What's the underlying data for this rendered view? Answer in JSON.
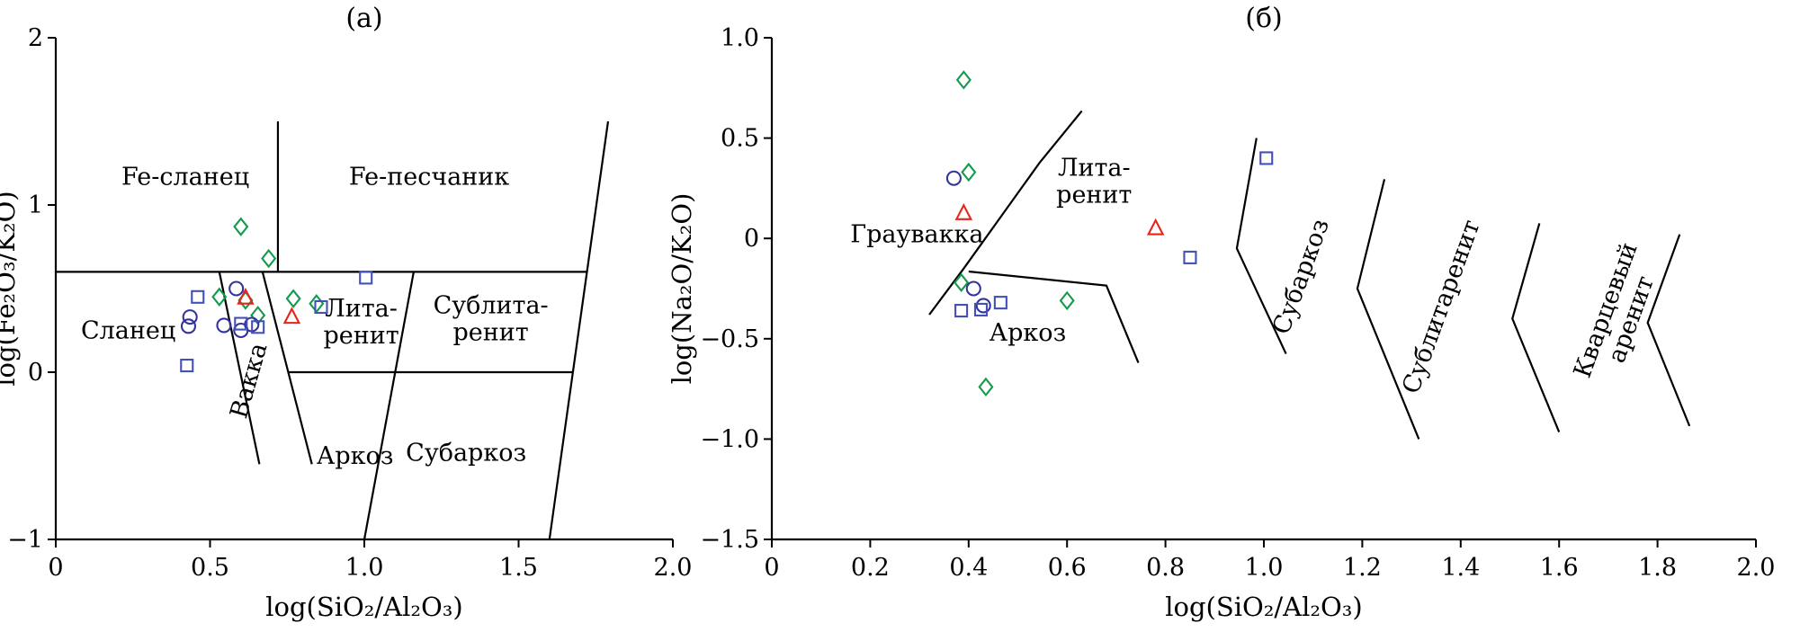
{
  "figure": {
    "background": "#ffffff",
    "line_color": "#000000"
  },
  "chart_data": [
    {
      "type": "scatter",
      "id": "a",
      "title": "(а)",
      "xlabel": "log(SiO₂/Al₂O₃)",
      "ylabel": "log(Fe₂O₃/K₂O)",
      "xlim": [
        0,
        2
      ],
      "ylim": [
        -1,
        2
      ],
      "grid": false,
      "legend": "none",
      "xtick_values": [
        0,
        0.5,
        1.0,
        1.5,
        2.0
      ],
      "xtick_labels": [
        "0",
        "0.5",
        "1.0",
        "1.5",
        "2.0"
      ],
      "ytick_values": [
        -1,
        0,
        1,
        2
      ],
      "ytick_labels": [
        "−1",
        "0",
        "1",
        "2"
      ],
      "boundary_lines": [
        {
          "name": "fe-field-horizontal",
          "points": [
            [
              0,
              0.6
            ],
            [
              1.72,
              0.6
            ]
          ]
        },
        {
          "name": "fe-shale-sandstone-vertical",
          "points": [
            [
              0.72,
              1.5
            ],
            [
              0.72,
              0.6
            ]
          ]
        },
        {
          "name": "shale-wacke",
          "points": [
            [
              0.53,
              0.6
            ],
            [
              0.66,
              -0.55
            ]
          ]
        },
        {
          "name": "wacke-litharenite-arkose",
          "points": [
            [
              0.67,
              0.6
            ],
            [
              0.83,
              -0.55
            ]
          ]
        },
        {
          "name": "litharenite-arkose-horizontal",
          "points": [
            [
              0.753,
              0
            ],
            [
              1.676,
              0
            ]
          ]
        },
        {
          "name": "litharenite-sublitharenite",
          "points": [
            [
              1.16,
              0.6
            ],
            [
              1.0,
              -1.0
            ]
          ]
        },
        {
          "name": "right-field-boundary",
          "points": [
            [
              1.79,
              1.5
            ],
            [
              1.6,
              -1.0
            ]
          ]
        }
      ],
      "region_labels": [
        {
          "lines": [
            "Fe-сланец"
          ],
          "x": 0.42,
          "y": 1.17,
          "rotation": 0
        },
        {
          "lines": [
            "Fe-песчаник"
          ],
          "x": 1.21,
          "y": 1.17,
          "rotation": 0
        },
        {
          "lines": [
            "Сланец"
          ],
          "x": 0.235,
          "y": 0.25,
          "rotation": 0
        },
        {
          "lines": [
            "Вакка"
          ],
          "x": 0.625,
          "y": -0.05,
          "rotation": -74
        },
        {
          "lines": [
            "Лита-",
            "ренит"
          ],
          "x": 0.99,
          "y": 0.3,
          "rotation": 0
        },
        {
          "lines": [
            "Сублита-",
            "ренит"
          ],
          "x": 1.41,
          "y": 0.32,
          "rotation": 0
        },
        {
          "lines": [
            "Аркоз"
          ],
          "x": 0.97,
          "y": -0.5,
          "rotation": 0
        },
        {
          "lines": [
            "Субаркоз"
          ],
          "x": 1.33,
          "y": -0.48,
          "rotation": 0
        }
      ],
      "series": [
        {
          "name": "green-diamond-samples",
          "marker": "diamond",
          "color": "#119b4b",
          "points": [
            [
              0.6,
              0.87
            ],
            [
              0.69,
              0.68
            ],
            [
              0.53,
              0.45
            ],
            [
              0.615,
              0.43
            ],
            [
              0.77,
              0.44
            ],
            [
              0.845,
              0.41
            ],
            [
              0.655,
              0.34
            ]
          ]
        },
        {
          "name": "blue-circle-samples",
          "marker": "circle",
          "color": "#33339c",
          "points": [
            [
              0.585,
              0.5
            ],
            [
              0.435,
              0.33
            ],
            [
              0.43,
              0.275
            ],
            [
              0.545,
              0.28
            ],
            [
              0.6,
              0.25
            ],
            [
              0.635,
              0.285
            ]
          ]
        },
        {
          "name": "blue-square-samples",
          "marker": "square",
          "color": "#4350b5",
          "points": [
            [
              0.46,
              0.45
            ],
            [
              0.6,
              0.29
            ],
            [
              0.655,
              0.27
            ],
            [
              0.86,
              0.39
            ],
            [
              1.005,
              0.565
            ],
            [
              0.425,
              0.04
            ]
          ]
        },
        {
          "name": "red-triangle-samples",
          "marker": "triangle",
          "color": "#e8231a",
          "points": [
            [
              0.615,
              0.445
            ],
            [
              0.765,
              0.33
            ]
          ]
        }
      ]
    },
    {
      "type": "scatter",
      "id": "b",
      "title": "(б)",
      "xlabel": "log(SiO₂/Al₂O₃)",
      "ylabel": "log(Na₂O/K₂O)",
      "xlim": [
        0,
        2
      ],
      "ylim": [
        -1.5,
        1.0
      ],
      "grid": false,
      "legend": "none",
      "xtick_values": [
        0,
        0.2,
        0.4,
        0.6,
        0.8,
        1.0,
        1.2,
        1.4,
        1.6,
        1.8,
        2.0
      ],
      "xtick_labels": [
        "0",
        "0.2",
        "0.4",
        "0.6",
        "0.8",
        "1.0",
        "1.2",
        "1.4",
        "1.6",
        "1.8",
        "2.0"
      ],
      "ytick_values": [
        -1.5,
        -1.0,
        -0.5,
        0,
        0.5,
        1.0
      ],
      "ytick_labels": [
        "−1.5",
        "−1.0",
        "−0.5",
        "0",
        "0.5",
        "1.0"
      ],
      "boundary_lines": [
        {
          "name": "graywacke-litharenite",
          "points": [
            [
              0.63,
              0.635
            ],
            [
              0.545,
              0.38
            ],
            [
              0.39,
              -0.15
            ],
            [
              0.32,
              -0.38
            ]
          ]
        },
        {
          "name": "arkose-upper",
          "points": [
            [
              0.4,
              -0.165
            ],
            [
              0.68,
              -0.235
            ],
            [
              0.745,
              -0.62
            ]
          ]
        },
        {
          "name": "litharenite-subarkose",
          "points": [
            [
              0.985,
              0.5
            ],
            [
              0.945,
              -0.05
            ],
            [
              1.045,
              -0.575
            ]
          ]
        },
        {
          "name": "subarkose-sublitharenite",
          "points": [
            [
              1.245,
              0.295
            ],
            [
              1.19,
              -0.25
            ],
            [
              1.315,
              -1.0
            ]
          ]
        },
        {
          "name": "sublitharenite-quartzarenite",
          "points": [
            [
              1.56,
              0.075
            ],
            [
              1.505,
              -0.4
            ],
            [
              1.6,
              -0.965
            ]
          ]
        },
        {
          "name": "quartzarenite-right",
          "points": [
            [
              1.845,
              0.02
            ],
            [
              1.78,
              -0.42
            ],
            [
              1.865,
              -0.935
            ]
          ]
        }
      ],
      "region_labels": [
        {
          "lines": [
            "Граувакка"
          ],
          "x": 0.295,
          "y": 0.02,
          "rotation": 0
        },
        {
          "lines": [
            "Лита-",
            "ренит"
          ],
          "x": 0.655,
          "y": 0.285,
          "rotation": 0
        },
        {
          "lines": [
            "Аркоз"
          ],
          "x": 0.52,
          "y": -0.47,
          "rotation": 0
        },
        {
          "lines": [
            "Субаркоз"
          ],
          "x": 1.075,
          "y": -0.19,
          "rotation": -70
        },
        {
          "lines": [
            "Сублитаренит"
          ],
          "x": 1.36,
          "y": -0.34,
          "rotation": -70
        },
        {
          "lines": [
            "Кварцевый",
            "аренит"
          ],
          "x": 1.72,
          "y": -0.38,
          "rotation": -70
        }
      ],
      "series": [
        {
          "name": "green-diamond-samples",
          "marker": "diamond",
          "color": "#119b4b",
          "points": [
            [
              0.39,
              0.79
            ],
            [
              0.4,
              0.33
            ],
            [
              0.385,
              -0.22
            ],
            [
              0.6,
              -0.31
            ],
            [
              0.435,
              -0.74
            ]
          ]
        },
        {
          "name": "blue-circle-samples",
          "marker": "circle",
          "color": "#33339c",
          "points": [
            [
              0.37,
              0.3
            ],
            [
              0.41,
              -0.25
            ],
            [
              0.43,
              -0.335
            ]
          ]
        },
        {
          "name": "blue-square-samples",
          "marker": "square",
          "color": "#4350b5",
          "points": [
            [
              1.005,
              0.4
            ],
            [
              0.85,
              -0.095
            ],
            [
              0.385,
              -0.36
            ],
            [
              0.425,
              -0.355
            ],
            [
              0.465,
              -0.32
            ]
          ]
        },
        {
          "name": "red-triangle-samples",
          "marker": "triangle",
          "color": "#e8231a",
          "points": [
            [
              0.39,
              0.125
            ],
            [
              0.78,
              0.05
            ]
          ]
        }
      ]
    }
  ]
}
